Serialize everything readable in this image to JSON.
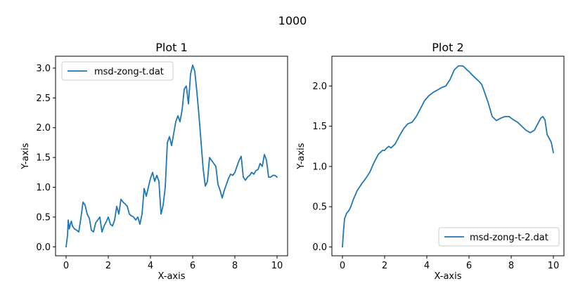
{
  "figure": {
    "suptitle": "1000"
  },
  "chart_data": [
    {
      "type": "line",
      "title": "Plot 1",
      "xlabel": "X-axis",
      "ylabel": "Y-axis",
      "xlim": [
        -0.5,
        10.5
      ],
      "ylim": [
        -0.15,
        3.2
      ],
      "xticks": [
        "0",
        "2",
        "4",
        "6",
        "8",
        "10"
      ],
      "yticks": [
        "0.0",
        "0.5",
        "1.0",
        "1.5",
        "2.0",
        "2.5",
        "3.0"
      ],
      "legend_position": "upper-left",
      "grid": false,
      "series": [
        {
          "name": "msd-zong-t.dat",
          "color": "#1f77b4",
          "x": [
            0,
            0.07,
            0.1,
            0.15,
            0.2,
            0.25,
            0.3,
            0.4,
            0.5,
            0.6,
            0.7,
            0.8,
            0.9,
            1.0,
            1.1,
            1.2,
            1.3,
            1.4,
            1.5,
            1.6,
            1.7,
            1.8,
            1.9,
            2.0,
            2.1,
            2.2,
            2.3,
            2.4,
            2.5,
            2.6,
            2.7,
            2.8,
            2.9,
            3.0,
            3.1,
            3.2,
            3.3,
            3.4,
            3.5,
            3.6,
            3.7,
            3.8,
            3.9,
            4.0,
            4.1,
            4.2,
            4.3,
            4.4,
            4.5,
            4.6,
            4.7,
            4.8,
            4.9,
            5.0,
            5.1,
            5.2,
            5.3,
            5.4,
            5.5,
            5.6,
            5.7,
            5.8,
            5.9,
            6.0,
            6.1,
            6.2,
            6.3,
            6.4,
            6.5,
            6.6,
            6.7,
            6.8,
            6.9,
            7.0,
            7.1,
            7.2,
            7.3,
            7.4,
            7.5,
            7.6,
            7.7,
            7.8,
            7.9,
            8.0,
            8.1,
            8.2,
            8.3,
            8.4,
            8.5,
            8.6,
            8.7,
            8.8,
            8.9,
            9.0,
            9.1,
            9.2,
            9.3,
            9.4,
            9.5,
            9.6,
            9.7,
            9.8,
            9.9,
            10.0
          ],
          "y": [
            0.0,
            0.2,
            0.45,
            0.3,
            0.38,
            0.43,
            0.35,
            0.3,
            0.28,
            0.25,
            0.48,
            0.75,
            0.7,
            0.55,
            0.48,
            0.28,
            0.25,
            0.4,
            0.45,
            0.5,
            0.25,
            0.35,
            0.42,
            0.5,
            0.38,
            0.35,
            0.45,
            0.68,
            0.55,
            0.8,
            0.75,
            0.72,
            0.68,
            0.55,
            0.52,
            0.5,
            0.45,
            0.5,
            0.38,
            0.55,
            0.98,
            0.85,
            1.0,
            1.15,
            1.25,
            1.1,
            1.2,
            1.1,
            0.55,
            0.7,
            1.0,
            1.75,
            1.85,
            1.7,
            1.9,
            2.1,
            2.2,
            2.1,
            2.3,
            2.65,
            2.7,
            2.4,
            2.9,
            3.05,
            2.95,
            2.6,
            2.2,
            1.75,
            1.3,
            1.02,
            1.1,
            1.5,
            1.45,
            1.4,
            1.35,
            1.05,
            0.95,
            0.82,
            0.95,
            1.05,
            1.15,
            1.22,
            1.2,
            1.25,
            1.35,
            1.45,
            1.52,
            1.17,
            1.12,
            1.17,
            1.2,
            1.25,
            1.22,
            1.28,
            1.3,
            1.4,
            1.35,
            1.55,
            1.45,
            1.17,
            1.17,
            1.2,
            1.2,
            1.17
          ]
        }
      ]
    },
    {
      "type": "line",
      "title": "Plot 2",
      "xlabel": "X-axis",
      "ylabel": "Y-axis",
      "xlim": [
        -0.5,
        10.5
      ],
      "ylim": [
        -0.11,
        2.37
      ],
      "xticks": [
        "0",
        "2",
        "4",
        "6",
        "8",
        "10"
      ],
      "yticks": [
        "0.0",
        "0.5",
        "1.0",
        "1.5",
        "2.0"
      ],
      "legend_position": "lower-right",
      "grid": false,
      "series": [
        {
          "name": "msd-zong-t-2.dat",
          "color": "#1f77b4",
          "x": [
            0,
            0.05,
            0.1,
            0.2,
            0.3,
            0.4,
            0.5,
            0.7,
            0.9,
            1.1,
            1.3,
            1.5,
            1.7,
            1.9,
            2.0,
            2.1,
            2.2,
            2.3,
            2.5,
            2.7,
            2.9,
            3.1,
            3.3,
            3.5,
            3.7,
            3.9,
            4.1,
            4.3,
            4.5,
            4.7,
            4.9,
            5.1,
            5.3,
            5.5,
            5.7,
            5.8,
            5.9,
            6.0,
            6.1,
            6.3,
            6.5,
            6.6,
            6.7,
            6.9,
            7.1,
            7.3,
            7.5,
            7.7,
            7.9,
            8.0,
            8.1,
            8.3,
            8.5,
            8.7,
            8.9,
            9.1,
            9.3,
            9.4,
            9.5,
            9.6,
            9.7,
            9.8,
            9.9,
            10.0
          ],
          "y": [
            0.0,
            0.2,
            0.35,
            0.42,
            0.45,
            0.5,
            0.58,
            0.7,
            0.78,
            0.85,
            0.93,
            1.05,
            1.15,
            1.2,
            1.2,
            1.23,
            1.25,
            1.23,
            1.28,
            1.38,
            1.47,
            1.53,
            1.55,
            1.62,
            1.72,
            1.82,
            1.88,
            1.92,
            1.95,
            1.98,
            2.0,
            2.08,
            2.2,
            2.25,
            2.25,
            2.23,
            2.2,
            2.18,
            2.15,
            2.1,
            2.05,
            2.02,
            1.95,
            1.8,
            1.62,
            1.57,
            1.6,
            1.62,
            1.62,
            1.6,
            1.58,
            1.55,
            1.5,
            1.45,
            1.42,
            1.45,
            1.55,
            1.6,
            1.62,
            1.58,
            1.4,
            1.35,
            1.3,
            1.17
          ]
        }
      ]
    }
  ]
}
